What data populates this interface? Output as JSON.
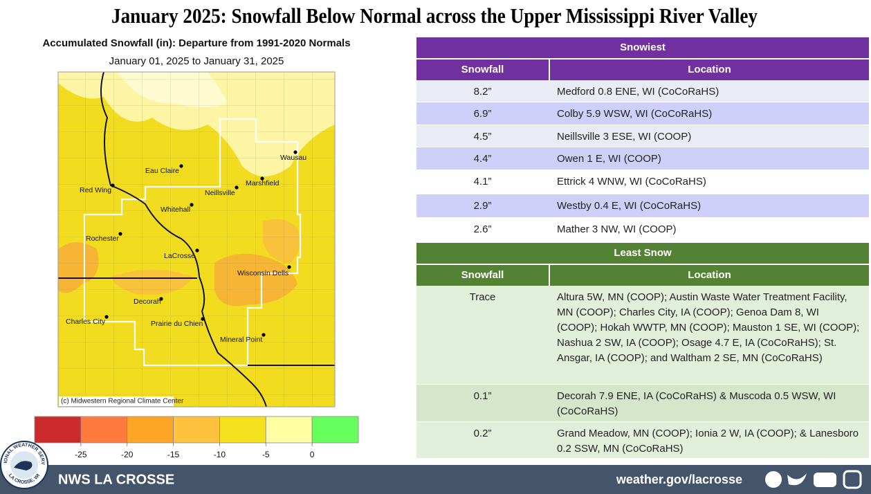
{
  "title": "January 2025:  Snowfall Below Normal across the Upper Mississippi River Valley",
  "map": {
    "title": "Accumulated Snowfall (in): Departure from 1991-2020 Normals",
    "subtitle": "January 01, 2025 to January 31, 2025",
    "credit": "(c) Midwestern Regional Climate Center",
    "cities": [
      "Wausau",
      "Eau Claire",
      "Marshfield",
      "Red Wing",
      "Neillsville",
      "Whitehall",
      "Rochester",
      "LaCrosse",
      "Wisconsin Dells",
      "Decorah",
      "Charles City",
      "Prairie du Chien",
      "Mineral Point"
    ],
    "legend": {
      "ticks": [
        -25,
        -20,
        -15,
        -10,
        -5,
        0
      ],
      "colors": [
        "#cc2b2b",
        "#ff7a3d",
        "#ffa526",
        "#ffc23f",
        "#f5e11e",
        "#ffffa3",
        "#66ff5e"
      ]
    }
  },
  "snowiest": {
    "title": "Snowiest",
    "columns": [
      "Snowfall",
      "Location"
    ],
    "rows": [
      [
        "8.2”",
        "Medford 0.8 ENE, WI (CoCoRaHS)"
      ],
      [
        "6.9”",
        "Colby 5.9 WSW, WI (CoCoRaHS)"
      ],
      [
        "4.5”",
        "Neillsville 3 ESE, WI (COOP)"
      ],
      [
        "4.4”",
        "Owen 1 E, WI (COOP)"
      ],
      [
        "4.1”",
        "Ettrick 4 WNW, WI (CoCoRaHS)"
      ],
      [
        "2.9”",
        "Westby 0.4 E, WI (CoCoRaHS)"
      ],
      [
        "2.6”",
        "Mather 3 NW, WI (COOP)"
      ]
    ]
  },
  "least_snow": {
    "title": "Least Snow",
    "columns": [
      "Snowfall",
      "Location"
    ],
    "rows": [
      [
        "Trace",
        "Altura 5W, MN (COOP); Austin Waste Water Treatment Facility, MN (COOP); Charles City, IA (COOP); Genoa Dam 8, WI (COOP); Hokah WWTP, MN (COOP); Mauston 1 SE, WI (COOP); Nashua 2 SW, IA (COOP); Osage 4.7 E, IA (CoCoRaHS); St. Ansgar, IA (COOP); and Waltham 2 SE, MN (CoCoRaHS)"
      ],
      [
        "0.1”",
        "Decorah 7.9 ENE, IA (CoCoRaHS) & Muscoda 0.5 WSW, WI (CoCoRaHS)"
      ],
      [
        "0.2”",
        "Grand Meadow, MN (COOP); Ionia 2 W, IA (COOP); & Lanesboro 0.2 SSW, MN (CoCoRaHS)"
      ]
    ]
  },
  "footer": {
    "office": "NWS LA CROSSE",
    "url": "weather.gov/lacrosse",
    "logo_top": "NATIONAL WEATHER SERVICE",
    "logo_bottom": "LA CROSSE, WI"
  }
}
